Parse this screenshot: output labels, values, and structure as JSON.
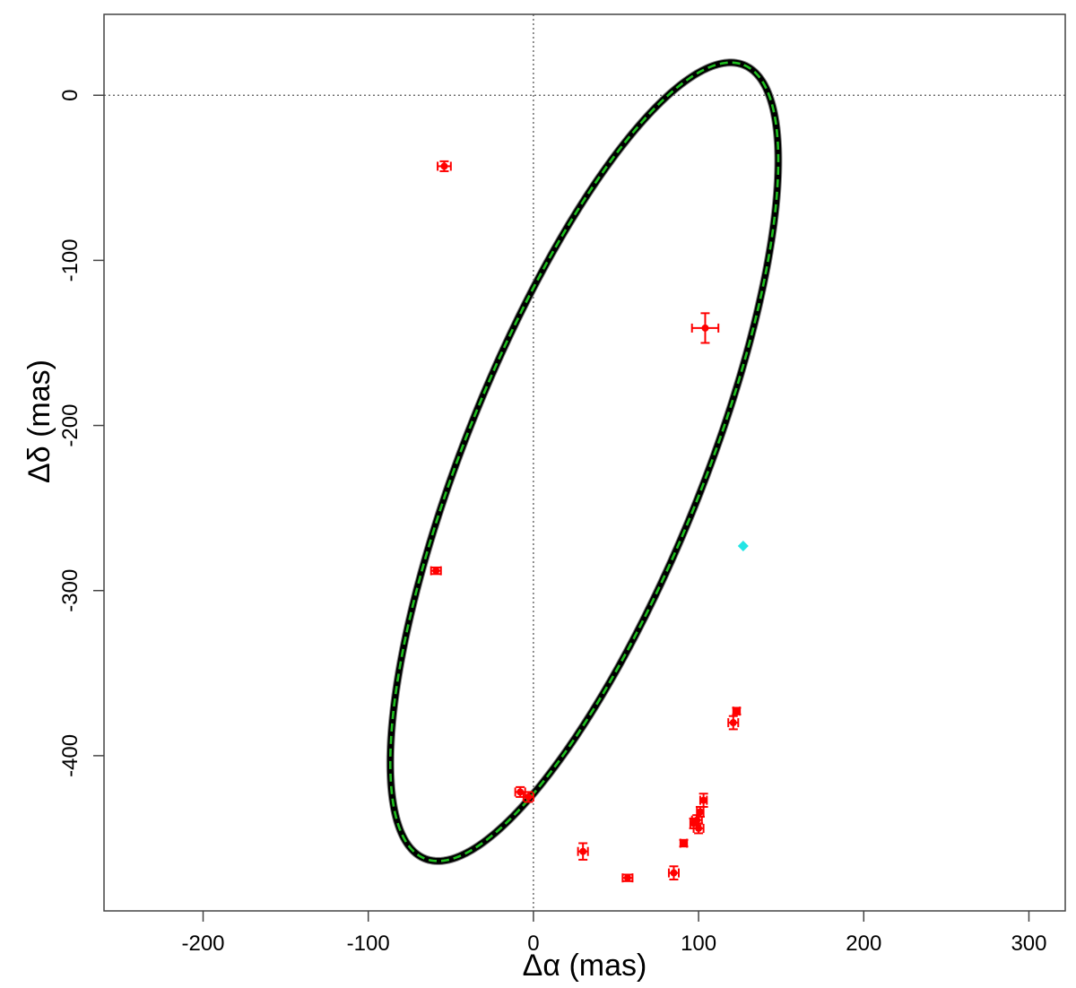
{
  "chart_data": {
    "type": "scatter",
    "title": "",
    "xlabel": "Δα (mas)",
    "ylabel": "Δδ (mas)",
    "xlim": [
      -260,
      322
    ],
    "ylim": [
      -494,
      49
    ],
    "xticks": [
      -200,
      -100,
      0,
      100,
      200,
      300
    ],
    "yticks": [
      0,
      -100,
      -200,
      -300,
      -400
    ],
    "x_tick_labels": [
      "-200",
      "-100",
      "0",
      "100",
      "200",
      "300"
    ],
    "y_tick_labels": [
      "0",
      "-100",
      "-200",
      "-300",
      "-400"
    ],
    "grid": false,
    "reference_lines": {
      "x": 0,
      "y": 0,
      "style": "dotted"
    },
    "orbit_fit": {
      "center": [
        30.8,
        -222.0
      ],
      "semi_axis_long": 259,
      "semi_axis_short": 72,
      "major_axis_angle_deg_from_y": 21.9,
      "colors": {
        "band": "#000000",
        "best_fit_line": "#1fbf1f"
      }
    },
    "series": [
      {
        "color": "#ff0000",
        "marker": "filled-circle-with-errorbars",
        "points": [
          {
            "x": -54,
            "y": -43,
            "xerr": 4,
            "yerr": 3
          },
          {
            "x": 104,
            "y": -141,
            "xerr": 8,
            "yerr": 9
          },
          {
            "x": -59,
            "y": -288,
            "xerr": 3,
            "yerr": 2
          },
          {
            "x": 121,
            "y": -380,
            "xerr": 3,
            "yerr": 4
          },
          {
            "x": 123,
            "y": -373,
            "xerr": 2,
            "yerr": 2
          },
          {
            "x": -8,
            "y": -422,
            "xerr": 3,
            "yerr": 3
          },
          {
            "x": -3,
            "y": -425,
            "xerr": 3,
            "yerr": 3
          },
          {
            "x": 103,
            "y": -427,
            "xerr": 2,
            "yerr": 4
          },
          {
            "x": 101,
            "y": -434,
            "xerr": 2,
            "yerr": 3
          },
          {
            "x": 99,
            "y": -439,
            "xerr": 3,
            "yerr": 3
          },
          {
            "x": 100,
            "y": -444,
            "xerr": 3,
            "yerr": 3
          },
          {
            "x": 97,
            "y": -441,
            "xerr": 2,
            "yerr": 3
          },
          {
            "x": 91,
            "y": -453,
            "xerr": 2,
            "yerr": 2
          },
          {
            "x": 30,
            "y": -458,
            "xerr": 3,
            "yerr": 5
          },
          {
            "x": 57,
            "y": -474,
            "xerr": 3,
            "yerr": 2
          },
          {
            "x": 85,
            "y": -471,
            "xerr": 3,
            "yerr": 4
          }
        ]
      },
      {
        "color": "#22e5e5",
        "marker": "filled-diamond",
        "points": [
          {
            "x": 127,
            "y": -273
          }
        ]
      }
    ]
  }
}
